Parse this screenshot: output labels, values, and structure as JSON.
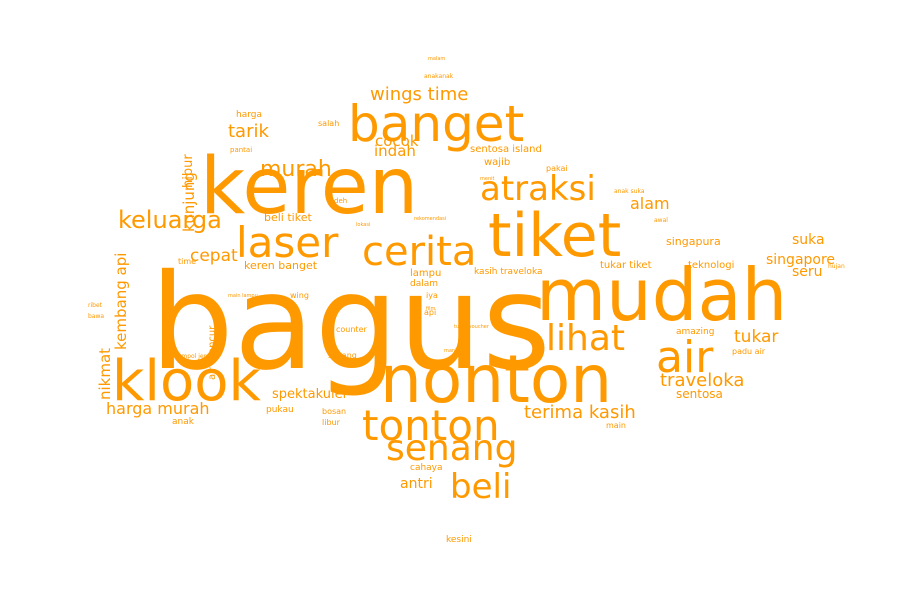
{
  "palette": {
    "word_color": "#ff9900",
    "background": "#ffffff"
  },
  "words": [
    {
      "text": "bagus",
      "weight": 100
    },
    {
      "text": "mudah",
      "weight": 65
    },
    {
      "text": "keren",
      "weight": 60
    },
    {
      "text": "nonton",
      "weight": 55
    },
    {
      "text": "tiket",
      "weight": 50
    },
    {
      "text": "klook",
      "weight": 48
    },
    {
      "text": "banget",
      "weight": 42
    },
    {
      "text": "tonton",
      "weight": 38
    },
    {
      "text": "air",
      "weight": 36
    },
    {
      "text": "laser",
      "weight": 35
    },
    {
      "text": "cerita",
      "weight": 34
    },
    {
      "text": "senang",
      "weight": 32
    },
    {
      "text": "lihat",
      "weight": 30
    },
    {
      "text": "beli",
      "weight": 29
    },
    {
      "text": "atraksi",
      "weight": 28
    },
    {
      "text": "keluarga",
      "weight": 22
    },
    {
      "text": "murah",
      "weight": 20
    },
    {
      "text": "wings time",
      "weight": 17
    },
    {
      "text": "traveloka",
      "weight": 17
    },
    {
      "text": "terima kasih",
      "weight": 16
    },
    {
      "text": "tarik",
      "weight": 16
    },
    {
      "text": "harga murah",
      "weight": 15
    },
    {
      "text": "spektakuler",
      "weight": 12
    },
    {
      "text": "cocok",
      "weight": 14
    },
    {
      "text": "indah",
      "weight": 14
    },
    {
      "text": "tukar",
      "weight": 15
    },
    {
      "text": "alam",
      "weight": 14
    },
    {
      "text": "cepat",
      "weight": 15
    },
    {
      "text": "kunjung",
      "weight": 14
    },
    {
      "text": "kembang api",
      "weight": 14
    },
    {
      "text": "nikmat",
      "weight": 14
    },
    {
      "text": "suka",
      "weight": 13
    },
    {
      "text": "singapore",
      "weight": 13
    },
    {
      "text": "seru",
      "weight": 13
    },
    {
      "text": "sentosa",
      "weight": 12
    },
    {
      "text": "antri",
      "weight": 13
    },
    {
      "text": "hibur",
      "weight": 12
    },
    {
      "text": "keren banget",
      "weight": 10
    },
    {
      "text": "beli tiket",
      "weight": 10
    },
    {
      "text": "wajib",
      "weight": 9
    },
    {
      "text": "sentosa island",
      "weight": 9
    },
    {
      "text": "singapura",
      "weight": 10
    },
    {
      "text": "teknologi",
      "weight": 9
    },
    {
      "text": "tukar tiket",
      "weight": 9
    },
    {
      "text": "kasih traveloka",
      "weight": 8
    },
    {
      "text": "lampu",
      "weight": 9
    },
    {
      "text": "dalam",
      "weight": 8
    },
    {
      "text": "air mancur",
      "weight": 9
    },
    {
      "text": "amazing",
      "weight": 8
    },
    {
      "text": "padu air",
      "weight": 7
    },
    {
      "text": "cahaya",
      "weight": 8
    },
    {
      "text": "kesini",
      "weight": 8
    },
    {
      "text": "pukau",
      "weight": 8
    },
    {
      "text": "libur",
      "weight": 7
    },
    {
      "text": "bosan",
      "weight": 7
    },
    {
      "text": "anak",
      "weight": 8
    },
    {
      "text": "sayang",
      "weight": 7
    },
    {
      "text": "counter",
      "weight": 7
    },
    {
      "text": "pakai",
      "weight": 7
    },
    {
      "text": "harga",
      "weight": 8
    },
    {
      "text": "salah",
      "weight": 7
    },
    {
      "text": "time",
      "weight": 7
    },
    {
      "text": "main",
      "weight": 7
    },
    {
      "text": "wing",
      "weight": 7
    },
    {
      "text": "iya",
      "weight": 7
    },
    {
      "text": "api",
      "weight": 7
    },
    {
      "text": "deh",
      "weight": 6
    },
    {
      "text": "anak suka",
      "weight": 6
    },
    {
      "text": "awal",
      "weight": 6
    },
    {
      "text": "hujan",
      "weight": 6
    },
    {
      "text": "pantai",
      "weight": 6
    },
    {
      "text": "jempol jempol",
      "weight": 6
    },
    {
      "text": "main lampu",
      "weight": 5
    },
    {
      "text": "ribet",
      "weight": 6
    },
    {
      "text": "bawa",
      "weight": 6
    },
    {
      "text": "tukar voucher",
      "weight": 5
    },
    {
      "text": "mantap",
      "weight": 5
    },
    {
      "text": "menit",
      "weight": 5
    },
    {
      "text": "anakanak",
      "weight": 6
    },
    {
      "text": "malam",
      "weight": 5
    },
    {
      "text": "rekomendasi",
      "weight": 5
    },
    {
      "text": "lokasi",
      "weight": 5
    },
    {
      "text": "film",
      "weight": 5
    }
  ]
}
